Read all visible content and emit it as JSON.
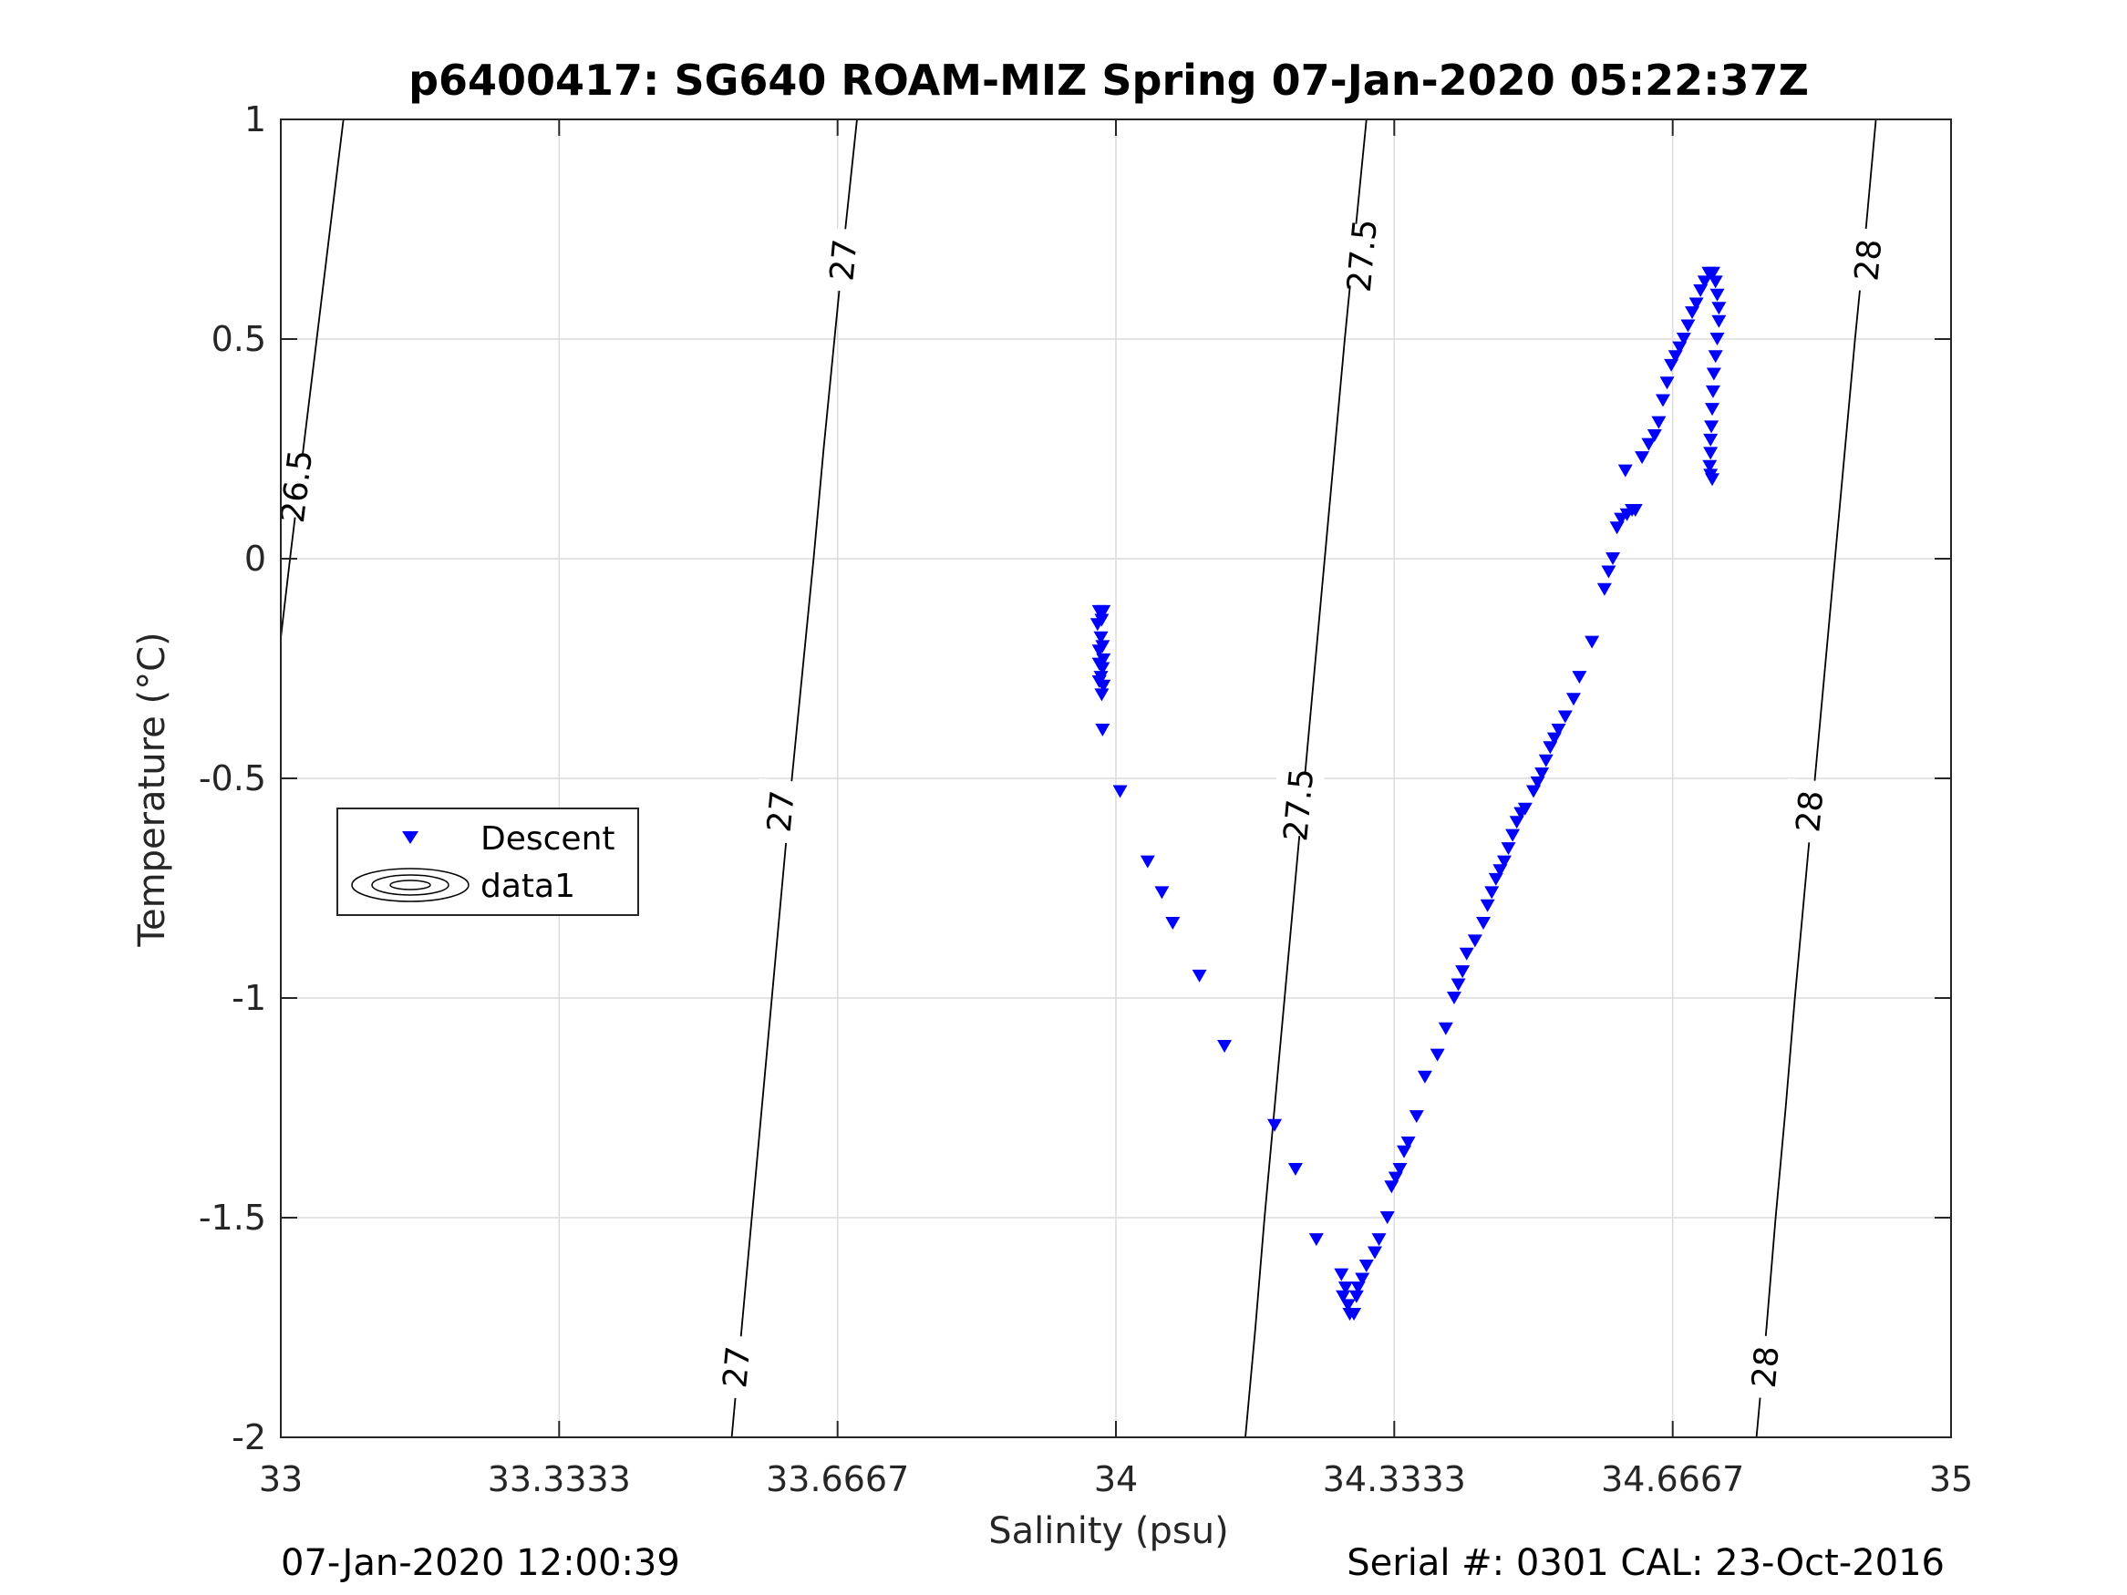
{
  "chart_data": {
    "type": "scatter",
    "title": "p6400417: SG640 ROAM-MIZ Spring 07-Jan-2020 05:22:37Z",
    "xlabel": "Salinity (psu)",
    "ylabel": "Temperature (°C)",
    "xlim": [
      33,
      35
    ],
    "ylim": [
      -2,
      1
    ],
    "xticks": [
      "33",
      "33.3333",
      "33.6667",
      "34",
      "34.3333",
      "34.6667",
      "35"
    ],
    "yticks": [
      "-2",
      "-1.5",
      "-1",
      "-0.5",
      "0",
      "0.5",
      "1"
    ],
    "grid": true,
    "legend": {
      "placement": "left-middle",
      "entries": [
        "Descent",
        "data1"
      ]
    },
    "series": [
      {
        "name": "Descent",
        "marker": "downward-triangle",
        "color": "#0000ff",
        "points": [
          [
            33.98,
            -0.12
          ],
          [
            33.985,
            -0.12
          ],
          [
            33.983,
            -0.14
          ],
          [
            33.978,
            -0.15
          ],
          [
            33.982,
            -0.18
          ],
          [
            33.984,
            -0.2
          ],
          [
            33.98,
            -0.21
          ],
          [
            33.985,
            -0.23
          ],
          [
            33.98,
            -0.24
          ],
          [
            33.984,
            -0.25
          ],
          [
            33.982,
            -0.27
          ],
          [
            33.98,
            -0.28
          ],
          [
            33.985,
            -0.29
          ],
          [
            33.983,
            -0.31
          ],
          [
            33.984,
            -0.39
          ],
          [
            34.005,
            -0.53
          ],
          [
            34.038,
            -0.69
          ],
          [
            34.055,
            -0.76
          ],
          [
            34.068,
            -0.83
          ],
          [
            34.1,
            -0.95
          ],
          [
            34.13,
            -1.11
          ],
          [
            34.19,
            -1.29
          ],
          [
            34.215,
            -1.39
          ],
          [
            34.24,
            -1.55
          ],
          [
            34.27,
            -1.63
          ],
          [
            34.275,
            -1.66
          ],
          [
            34.272,
            -1.68
          ],
          [
            34.278,
            -1.7
          ],
          [
            34.28,
            -1.72
          ],
          [
            34.285,
            -1.72
          ],
          [
            34.288,
            -1.68
          ],
          [
            34.29,
            -1.66
          ],
          [
            34.295,
            -1.64
          ],
          [
            34.3,
            -1.61
          ],
          [
            34.31,
            -1.58
          ],
          [
            34.315,
            -1.55
          ],
          [
            34.325,
            -1.5
          ],
          [
            34.33,
            -1.43
          ],
          [
            34.335,
            -1.41
          ],
          [
            34.34,
            -1.39
          ],
          [
            34.345,
            -1.35
          ],
          [
            34.35,
            -1.33
          ],
          [
            34.36,
            -1.27
          ],
          [
            34.37,
            -1.18
          ],
          [
            34.385,
            -1.13
          ],
          [
            34.395,
            -1.07
          ],
          [
            34.405,
            -1.0
          ],
          [
            34.41,
            -0.97
          ],
          [
            34.415,
            -0.94
          ],
          [
            34.42,
            -0.9
          ],
          [
            34.43,
            -0.87
          ],
          [
            34.44,
            -0.83
          ],
          [
            34.445,
            -0.79
          ],
          [
            34.45,
            -0.76
          ],
          [
            34.455,
            -0.73
          ],
          [
            34.46,
            -0.71
          ],
          [
            34.465,
            -0.69
          ],
          [
            34.47,
            -0.66
          ],
          [
            34.475,
            -0.63
          ],
          [
            34.48,
            -0.6
          ],
          [
            34.485,
            -0.58
          ],
          [
            34.49,
            -0.57
          ],
          [
            34.5,
            -0.53
          ],
          [
            34.505,
            -0.51
          ],
          [
            34.51,
            -0.49
          ],
          [
            34.515,
            -0.46
          ],
          [
            34.52,
            -0.43
          ],
          [
            34.525,
            -0.41
          ],
          [
            34.53,
            -0.39
          ],
          [
            34.538,
            -0.36
          ],
          [
            34.548,
            -0.32
          ],
          [
            34.555,
            -0.27
          ],
          [
            34.57,
            -0.19
          ],
          [
            34.585,
            -0.07
          ],
          [
            34.59,
            -0.03
          ],
          [
            34.595,
            0.0
          ],
          [
            34.6,
            0.07
          ],
          [
            34.605,
            0.09
          ],
          [
            34.612,
            0.1
          ],
          [
            34.618,
            0.11
          ],
          [
            34.622,
            0.11
          ],
          [
            34.61,
            0.2
          ],
          [
            34.63,
            0.23
          ],
          [
            34.638,
            0.26
          ],
          [
            34.645,
            0.28
          ],
          [
            34.65,
            0.31
          ],
          [
            34.655,
            0.36
          ],
          [
            34.66,
            0.4
          ],
          [
            34.665,
            0.44
          ],
          [
            34.67,
            0.46
          ],
          [
            34.675,
            0.48
          ],
          [
            34.68,
            0.5
          ],
          [
            34.685,
            0.53
          ],
          [
            34.69,
            0.56
          ],
          [
            34.695,
            0.58
          ],
          [
            34.7,
            0.61
          ],
          [
            34.705,
            0.63
          ],
          [
            34.71,
            0.65
          ],
          [
            34.715,
            0.65
          ],
          [
            34.718,
            0.63
          ],
          [
            34.72,
            0.6
          ],
          [
            34.722,
            0.57
          ],
          [
            34.722,
            0.54
          ],
          [
            34.72,
            0.5
          ],
          [
            34.718,
            0.46
          ],
          [
            34.716,
            0.42
          ],
          [
            34.715,
            0.38
          ],
          [
            34.714,
            0.34
          ],
          [
            34.713,
            0.3
          ],
          [
            34.712,
            0.27
          ],
          [
            34.712,
            0.24
          ],
          [
            34.711,
            0.21
          ],
          [
            34.712,
            0.19
          ],
          [
            34.714,
            0.18
          ]
        ]
      },
      {
        "name": "data1",
        "type": "contour",
        "color": "#000000",
        "levels": [
          {
            "label": "26.5",
            "points": [
              [
                33.0,
                -0.18
              ],
              [
                33.011,
                0.0
              ],
              [
                33.027,
                0.25
              ],
              [
                33.043,
                0.5
              ],
              [
                33.059,
                0.75
              ],
              [
                33.075,
                1.0
              ]
            ],
            "label_positions": [
              [
                33.018,
                0.165
              ]
            ]
          },
          {
            "label": "27",
            "points": [
              [
                33.54,
                -2.0
              ],
              [
                33.552,
                -1.75
              ],
              [
                33.564,
                -1.5
              ],
              [
                33.576,
                -1.25
              ],
              [
                33.588,
                -1.0
              ],
              [
                33.6,
                -0.75
              ],
              [
                33.612,
                -0.5
              ],
              [
                33.625,
                -0.25
              ],
              [
                33.638,
                0.0
              ],
              [
                33.65,
                0.25
              ],
              [
                33.663,
                0.5
              ],
              [
                33.676,
                0.75
              ],
              [
                33.69,
                1.0
              ]
            ],
            "label_positions": [
              [
                33.545,
                -1.84
              ],
              [
                33.598,
                -0.575
              ],
              [
                33.673,
                0.68
              ]
            ]
          },
          {
            "label": "27.5",
            "points": [
              [
                34.155,
                -2.0
              ],
              [
                34.167,
                -1.75
              ],
              [
                34.178,
                -1.5
              ],
              [
                34.19,
                -1.25
              ],
              [
                34.202,
                -1.0
              ],
              [
                34.214,
                -0.75
              ],
              [
                34.226,
                -0.5
              ],
              [
                34.238,
                -0.25
              ],
              [
                34.25,
                0.0
              ],
              [
                34.262,
                0.25
              ],
              [
                34.274,
                0.5
              ],
              [
                34.287,
                0.75
              ],
              [
                34.3,
                1.0
              ]
            ],
            "label_positions": [
              [
                34.218,
                -0.56
              ],
              [
                34.294,
                0.69
              ]
            ]
          },
          {
            "label": "28",
            "points": [
              [
                34.767,
                -2.0
              ],
              [
                34.779,
                -1.75
              ],
              [
                34.79,
                -1.5
              ],
              [
                34.802,
                -1.25
              ],
              [
                34.813,
                -1.0
              ],
              [
                34.825,
                -0.75
              ],
              [
                34.837,
                -0.5
              ],
              [
                34.849,
                -0.25
              ],
              [
                34.861,
                0.0
              ],
              [
                34.873,
                0.25
              ],
              [
                34.885,
                0.5
              ],
              [
                34.898,
                0.75
              ],
              [
                34.91,
                1.0
              ]
            ],
            "label_positions": [
              [
                34.777,
                -1.84
              ],
              [
                34.83,
                -0.575
              ],
              [
                34.9,
                0.68
              ]
            ]
          }
        ]
      }
    ]
  },
  "footer": {
    "left": "07-Jan-2020 12:00:39",
    "right": "Serial #: 0301  CAL: 23-Oct-2016"
  }
}
